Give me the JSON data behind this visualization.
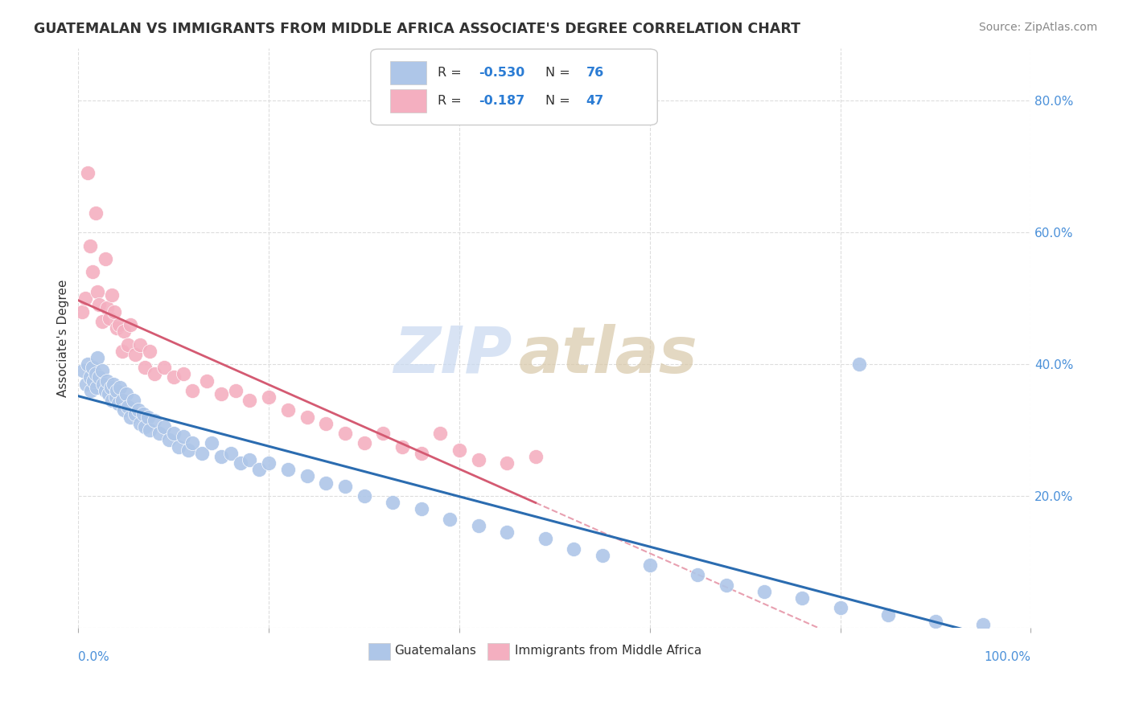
{
  "title": "GUATEMALAN VS IMMIGRANTS FROM MIDDLE AFRICA ASSOCIATE'S DEGREE CORRELATION CHART",
  "source": "Source: ZipAtlas.com",
  "ylabel": "Associate's Degree",
  "xlim": [
    0,
    1.0
  ],
  "ylim": [
    0,
    0.88
  ],
  "y_ticks": [
    0.0,
    0.2,
    0.4,
    0.6,
    0.8
  ],
  "y_tick_labels": [
    "",
    "20.0%",
    "40.0%",
    "60.0%",
    "80.0%"
  ],
  "x_left_label": "0.0%",
  "x_right_label": "100.0%",
  "legend_r1": "-0.530",
  "legend_n1": "76",
  "legend_r2": "-0.187",
  "legend_n2": "47",
  "blue_color": "#aec6e8",
  "pink_color": "#f4afc0",
  "line_blue": "#2b6cb0",
  "line_pink": "#d45a72",
  "dashed_color": "#e8a0b0",
  "watermark_zip_color": "#c8d8f0",
  "watermark_atlas_color": "#d8c8a8",
  "blue_x": [
    0.005,
    0.008,
    0.01,
    0.012,
    0.013,
    0.015,
    0.016,
    0.018,
    0.019,
    0.02,
    0.022,
    0.025,
    0.026,
    0.028,
    0.03,
    0.032,
    0.034,
    0.035,
    0.037,
    0.039,
    0.04,
    0.042,
    0.044,
    0.046,
    0.048,
    0.05,
    0.052,
    0.055,
    0.058,
    0.06,
    0.063,
    0.065,
    0.068,
    0.07,
    0.073,
    0.075,
    0.08,
    0.085,
    0.09,
    0.095,
    0.1,
    0.105,
    0.11,
    0.115,
    0.12,
    0.13,
    0.14,
    0.15,
    0.16,
    0.17,
    0.18,
    0.19,
    0.2,
    0.22,
    0.24,
    0.26,
    0.28,
    0.3,
    0.33,
    0.36,
    0.39,
    0.42,
    0.45,
    0.49,
    0.52,
    0.55,
    0.6,
    0.65,
    0.68,
    0.72,
    0.76,
    0.8,
    0.85,
    0.9,
    0.95,
    0.82
  ],
  "blue_y": [
    0.39,
    0.37,
    0.4,
    0.38,
    0.36,
    0.395,
    0.375,
    0.385,
    0.365,
    0.41,
    0.38,
    0.39,
    0.37,
    0.36,
    0.375,
    0.355,
    0.365,
    0.345,
    0.37,
    0.35,
    0.36,
    0.34,
    0.365,
    0.345,
    0.33,
    0.355,
    0.335,
    0.32,
    0.345,
    0.325,
    0.33,
    0.31,
    0.325,
    0.305,
    0.32,
    0.3,
    0.315,
    0.295,
    0.305,
    0.285,
    0.295,
    0.275,
    0.29,
    0.27,
    0.28,
    0.265,
    0.28,
    0.26,
    0.265,
    0.25,
    0.255,
    0.24,
    0.25,
    0.24,
    0.23,
    0.22,
    0.215,
    0.2,
    0.19,
    0.18,
    0.165,
    0.155,
    0.145,
    0.135,
    0.12,
    0.11,
    0.095,
    0.08,
    0.065,
    0.055,
    0.045,
    0.03,
    0.02,
    0.01,
    0.005,
    0.4
  ],
  "pink_x": [
    0.004,
    0.007,
    0.01,
    0.012,
    0.015,
    0.018,
    0.02,
    0.022,
    0.025,
    0.028,
    0.03,
    0.033,
    0.035,
    0.038,
    0.04,
    0.043,
    0.046,
    0.048,
    0.052,
    0.055,
    0.06,
    0.065,
    0.07,
    0.075,
    0.08,
    0.09,
    0.1,
    0.11,
    0.12,
    0.135,
    0.15,
    0.165,
    0.18,
    0.2,
    0.22,
    0.24,
    0.26,
    0.28,
    0.3,
    0.32,
    0.34,
    0.36,
    0.38,
    0.4,
    0.42,
    0.45,
    0.48
  ],
  "pink_y": [
    0.48,
    0.5,
    0.69,
    0.58,
    0.54,
    0.63,
    0.51,
    0.49,
    0.465,
    0.56,
    0.485,
    0.47,
    0.505,
    0.48,
    0.455,
    0.46,
    0.42,
    0.45,
    0.43,
    0.46,
    0.415,
    0.43,
    0.395,
    0.42,
    0.385,
    0.395,
    0.38,
    0.385,
    0.36,
    0.375,
    0.355,
    0.36,
    0.345,
    0.35,
    0.33,
    0.32,
    0.31,
    0.295,
    0.28,
    0.295,
    0.275,
    0.265,
    0.295,
    0.27,
    0.255,
    0.25,
    0.26
  ]
}
